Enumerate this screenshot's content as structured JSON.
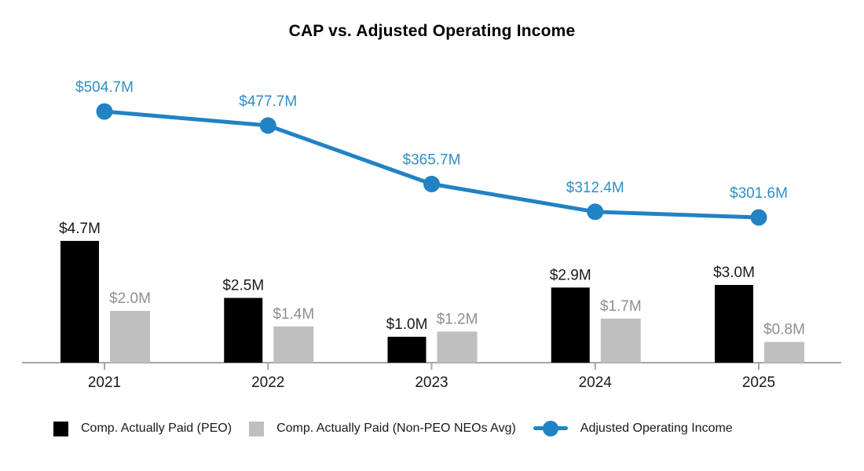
{
  "title": "CAP vs. Adjusted Operating Income",
  "chart_data": {
    "type": "bar+line",
    "title": "CAP vs. Adjusted Operating Income",
    "categories": [
      "2021",
      "2022",
      "2023",
      "2024",
      "2025"
    ],
    "unit": "USD millions",
    "grid": false,
    "y_axis_shown": false,
    "legend_position": "bottom",
    "bar_axis_range": [
      0,
      5.5
    ],
    "line_axis_range": [
      280,
      520
    ],
    "axis_color": "#a6a6a6",
    "category_label_color": "#1a1a1a",
    "series": [
      {
        "name": "Comp. Actually Paid (PEO)",
        "type": "bar",
        "color": "#000000",
        "label_color": "#1a1a1a",
        "values": [
          4.7,
          2.5,
          1.0,
          2.9,
          3.0
        ],
        "labels": [
          "$4.7M",
          "$2.5M",
          "$1.0M",
          "$2.9M",
          "$3.0M"
        ]
      },
      {
        "name": "Comp. Actually Paid (Non-PEO NEOs Avg)",
        "type": "bar",
        "color": "#bfbfbf",
        "label_color": "#8f8f8f",
        "values": [
          2.0,
          1.4,
          1.2,
          1.7,
          0.8
        ],
        "labels": [
          "$2.0M",
          "$1.4M",
          "$1.2M",
          "$1.7M",
          "$0.8M"
        ]
      },
      {
        "name": "Adjusted Operating Income",
        "type": "line",
        "color": "#2182c4",
        "label_color": "#2e8fc7",
        "values": [
          504.7,
          477.7,
          365.7,
          312.4,
          301.6
        ],
        "labels": [
          "$504.7M",
          "$477.7M",
          "$365.7M",
          "$312.4M",
          "$301.6M"
        ]
      }
    ]
  }
}
